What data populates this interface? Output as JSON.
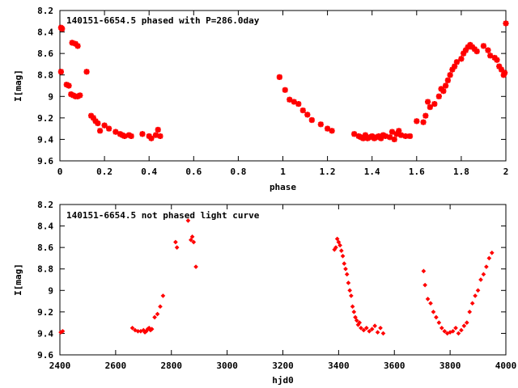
{
  "colors": {
    "series": "#ff0000",
    "axes": "#000000",
    "background": "#ffffff"
  },
  "chart_data": [
    {
      "type": "scatter",
      "title": "140151-6654.5 phased with P=286.0day",
      "xlabel": "phase",
      "ylabel": "I[mag]",
      "xlim": [
        0,
        2
      ],
      "ylim": [
        8.2,
        9.6
      ],
      "y_inverted": true,
      "grid": false,
      "xticks": [
        "0",
        "0.2",
        "0.4",
        "0.6",
        "0.8",
        "1",
        "1.2",
        "1.4",
        "1.6",
        "1.8",
        "2"
      ],
      "yticks": [
        "8.2",
        "8.4",
        "8.6",
        "8.8",
        "9",
        "9.2",
        "9.4",
        "9.6"
      ],
      "marker": "star",
      "x": [
        0.005,
        0.01,
        0.03,
        0.04,
        0.05,
        0.06,
        0.07,
        0.08,
        0.09,
        0.055,
        0.07,
        0.08,
        0.12,
        0.14,
        0.15,
        0.16,
        0.17,
        0.18,
        0.2,
        0.22,
        0.25,
        0.27,
        0.28,
        0.29,
        0.31,
        0.32,
        0.37,
        0.4,
        0.41,
        0.43,
        0.44,
        0.45,
        0.005,
        0.985,
        1.01,
        1.03,
        1.05,
        1.07,
        1.09,
        1.11,
        1.13,
        1.17,
        1.2,
        1.22,
        1.32,
        1.34,
        1.35,
        1.36,
        1.37,
        1.38,
        1.39,
        1.4,
        1.41,
        1.42,
        1.43,
        1.44,
        1.45,
        1.46,
        1.48,
        1.49,
        1.5,
        1.51,
        1.52,
        1.53,
        1.55,
        1.57,
        1.6,
        1.63,
        1.64,
        1.65,
        1.66,
        1.68,
        1.7,
        1.71,
        1.72,
        1.73,
        1.74,
        1.75,
        1.76,
        1.77,
        1.78,
        1.8,
        1.81,
        1.82,
        1.83,
        1.84,
        1.85,
        1.86,
        1.87,
        1.9,
        1.92,
        1.93,
        1.95,
        1.96,
        1.97,
        1.98,
        1.99,
        2.0,
        1.995
      ],
      "y": [
        8.36,
        8.37,
        8.89,
        8.9,
        8.98,
        8.99,
        9.0,
        9.0,
        8.99,
        8.5,
        8.51,
        8.53,
        8.77,
        9.18,
        9.2,
        9.23,
        9.25,
        9.32,
        9.27,
        9.3,
        9.33,
        9.35,
        9.36,
        9.37,
        9.36,
        9.37,
        9.35,
        9.37,
        9.39,
        9.36,
        9.31,
        9.37,
        8.77,
        8.82,
        8.94,
        9.03,
        9.05,
        9.07,
        9.13,
        9.17,
        9.22,
        9.26,
        9.3,
        9.32,
        9.35,
        9.37,
        9.38,
        9.39,
        9.36,
        9.39,
        9.38,
        9.37,
        9.39,
        9.38,
        9.37,
        9.39,
        9.36,
        9.37,
        9.38,
        9.33,
        9.4,
        9.35,
        9.32,
        9.36,
        9.37,
        9.37,
        9.23,
        9.24,
        9.18,
        9.05,
        9.1,
        9.07,
        9.0,
        8.93,
        8.95,
        8.9,
        8.85,
        8.8,
        8.75,
        8.72,
        8.68,
        8.65,
        8.6,
        8.57,
        8.54,
        8.52,
        8.54,
        8.56,
        8.58,
        8.53,
        8.57,
        8.62,
        8.64,
        8.66,
        8.72,
        8.75,
        8.8,
        8.32,
        8.78
      ]
    },
    {
      "type": "scatter",
      "title": "140151-6654.5 not phased light curve",
      "xlabel": "hjd0",
      "ylabel": "I[mag]",
      "xlim": [
        2400,
        4000
      ],
      "ylim": [
        8.2,
        9.6
      ],
      "y_inverted": true,
      "grid": false,
      "xticks": [
        "2400",
        "2600",
        "2800",
        "3000",
        "3200",
        "3400",
        "3600",
        "3800",
        "4000"
      ],
      "yticks": [
        "8.2",
        "8.4",
        "8.6",
        "8.8",
        "9",
        "9.2",
        "9.4",
        "9.6"
      ],
      "marker": "diamond",
      "x": [
        2403,
        2410,
        2660,
        2670,
        2680,
        2690,
        2700,
        2705,
        2710,
        2715,
        2720,
        2725,
        2730,
        2740,
        2750,
        2760,
        2770,
        2815,
        2820,
        2860,
        2870,
        2875,
        2880,
        2888,
        3385,
        3390,
        3395,
        3400,
        3405,
        3410,
        3415,
        3420,
        3425,
        3430,
        3435,
        3440,
        3445,
        3450,
        3455,
        3460,
        3465,
        3470,
        3475,
        3480,
        3490,
        3500,
        3510,
        3520,
        3530,
        3540,
        3550,
        3560,
        3705,
        3710,
        3720,
        3730,
        3740,
        3750,
        3760,
        3770,
        3780,
        3790,
        3800,
        3810,
        3820,
        3830,
        3840,
        3850,
        3860,
        3870,
        3880,
        3890,
        3900,
        3910,
        3920,
        3930,
        3940,
        3950
      ],
      "y": [
        9.39,
        9.38,
        9.35,
        9.37,
        9.38,
        9.38,
        9.37,
        9.39,
        9.38,
        9.36,
        9.35,
        9.37,
        9.36,
        9.25,
        9.22,
        9.15,
        9.05,
        8.55,
        8.6,
        8.35,
        8.53,
        8.5,
        8.55,
        8.78,
        8.62,
        8.6,
        8.52,
        8.55,
        8.58,
        8.63,
        8.68,
        8.75,
        8.8,
        8.85,
        8.93,
        9.0,
        9.05,
        9.15,
        9.2,
        9.25,
        9.28,
        9.32,
        9.3,
        9.35,
        9.37,
        9.35,
        9.38,
        9.36,
        9.33,
        9.39,
        9.35,
        9.4,
        8.82,
        8.95,
        9.08,
        9.12,
        9.2,
        9.25,
        9.3,
        9.35,
        9.38,
        9.4,
        9.39,
        9.38,
        9.35,
        9.4,
        9.37,
        9.33,
        9.3,
        9.2,
        9.12,
        9.05,
        9.0,
        8.9,
        8.85,
        8.78,
        8.7,
        8.65
      ]
    }
  ]
}
